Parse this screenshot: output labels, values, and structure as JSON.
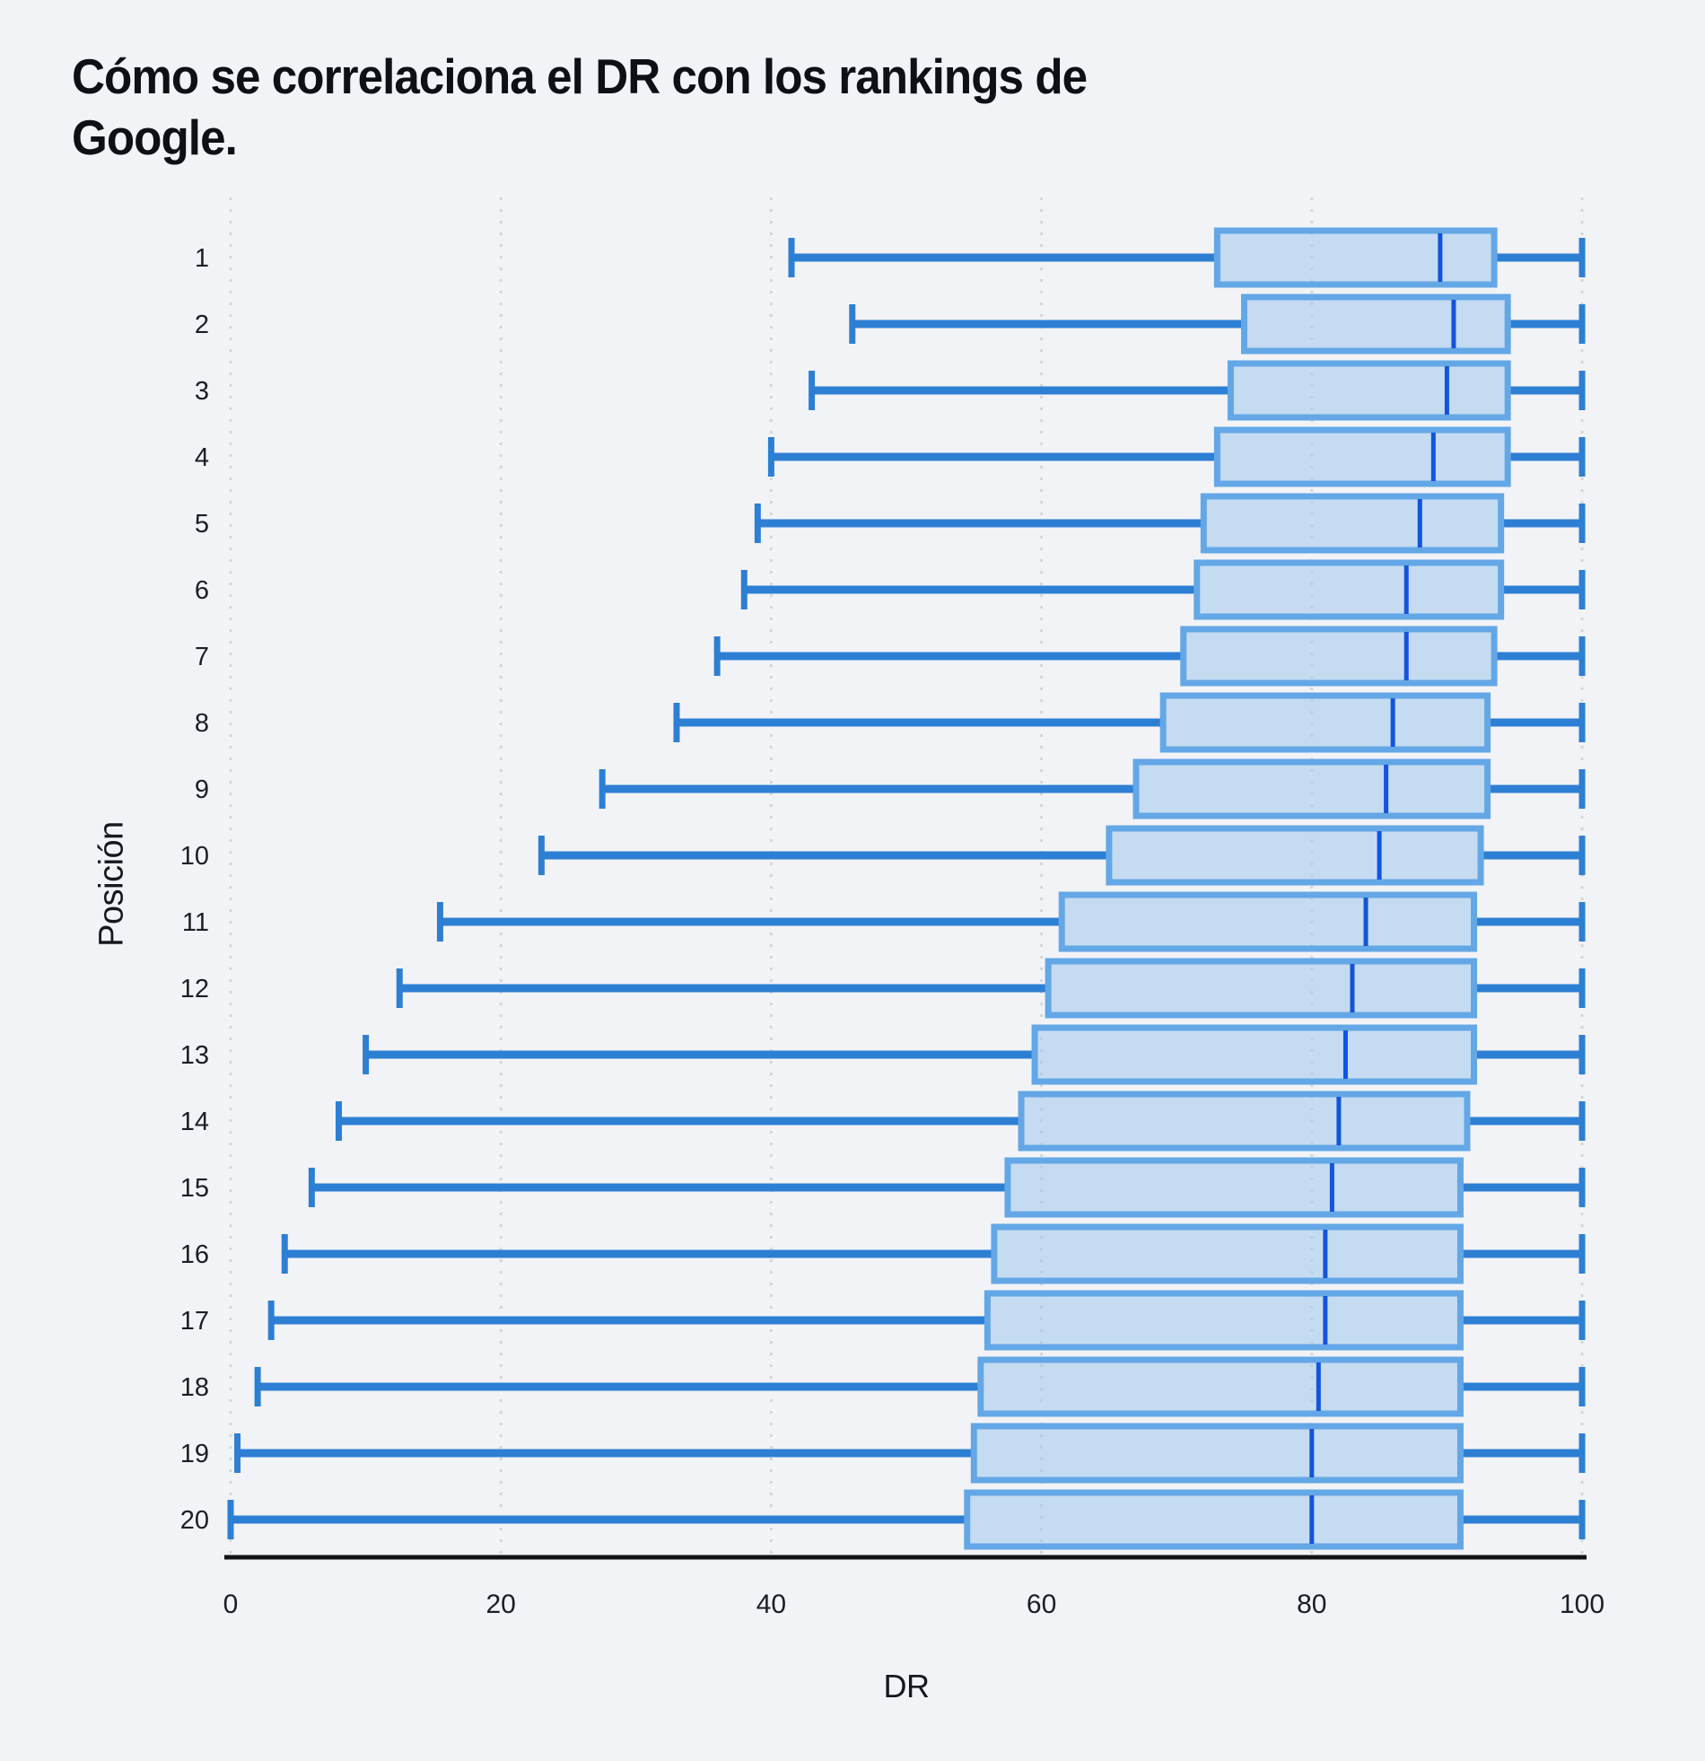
{
  "page": {
    "background": "#f2f3f6"
  },
  "chart": {
    "title": "Cómo se correlaciona el DR con los rankings de\nGoogle.",
    "xlabel": "DR",
    "ylabel": "Posición"
  },
  "chart_data": {
    "type": "boxplot",
    "orientation": "horizontal",
    "title": "Cómo se correlaciona el DR con los rankings de Google.",
    "xlabel": "DR",
    "ylabel": "Posición",
    "xlim": [
      0,
      100
    ],
    "xticks": [
      0,
      20,
      40,
      60,
      80,
      100
    ],
    "grid": "vertical-dotted",
    "legend": "none",
    "categories": [
      "1",
      "2",
      "3",
      "4",
      "5",
      "6",
      "7",
      "8",
      "9",
      "10",
      "11",
      "12",
      "13",
      "14",
      "15",
      "16",
      "17",
      "18",
      "19",
      "20"
    ],
    "series": [
      {
        "position": 1,
        "whisker_min": 41.5,
        "q1": 73,
        "median": 89.5,
        "q3": 93.5,
        "whisker_max": 100
      },
      {
        "position": 2,
        "whisker_min": 46,
        "q1": 75,
        "median": 90.5,
        "q3": 94.5,
        "whisker_max": 100
      },
      {
        "position": 3,
        "whisker_min": 43,
        "q1": 74,
        "median": 90,
        "q3": 94.5,
        "whisker_max": 100
      },
      {
        "position": 4,
        "whisker_min": 40,
        "q1": 73,
        "median": 89,
        "q3": 94.5,
        "whisker_max": 100
      },
      {
        "position": 5,
        "whisker_min": 39,
        "q1": 72,
        "median": 88,
        "q3": 94,
        "whisker_max": 100
      },
      {
        "position": 6,
        "whisker_min": 38,
        "q1": 71.5,
        "median": 87,
        "q3": 94,
        "whisker_max": 100
      },
      {
        "position": 7,
        "whisker_min": 36,
        "q1": 70.5,
        "median": 87,
        "q3": 93.5,
        "whisker_max": 100
      },
      {
        "position": 8,
        "whisker_min": 33,
        "q1": 69,
        "median": 86,
        "q3": 93,
        "whisker_max": 100
      },
      {
        "position": 9,
        "whisker_min": 27.5,
        "q1": 67,
        "median": 85.5,
        "q3": 93,
        "whisker_max": 100
      },
      {
        "position": 10,
        "whisker_min": 23,
        "q1": 65,
        "median": 85,
        "q3": 92.5,
        "whisker_max": 100
      },
      {
        "position": 11,
        "whisker_min": 15.5,
        "q1": 61.5,
        "median": 84,
        "q3": 92,
        "whisker_max": 100
      },
      {
        "position": 12,
        "whisker_min": 12.5,
        "q1": 60.5,
        "median": 83,
        "q3": 92,
        "whisker_max": 100
      },
      {
        "position": 13,
        "whisker_min": 10,
        "q1": 59.5,
        "median": 82.5,
        "q3": 92,
        "whisker_max": 100
      },
      {
        "position": 14,
        "whisker_min": 8,
        "q1": 58.5,
        "median": 82,
        "q3": 91.5,
        "whisker_max": 100
      },
      {
        "position": 15,
        "whisker_min": 6,
        "q1": 57.5,
        "median": 81.5,
        "q3": 91,
        "whisker_max": 100
      },
      {
        "position": 16,
        "whisker_min": 4,
        "q1": 56.5,
        "median": 81,
        "q3": 91,
        "whisker_max": 100
      },
      {
        "position": 17,
        "whisker_min": 3,
        "q1": 56,
        "median": 81,
        "q3": 91,
        "whisker_max": 100
      },
      {
        "position": 18,
        "whisker_min": 2,
        "q1": 55.5,
        "median": 80.5,
        "q3": 91,
        "whisker_max": 100
      },
      {
        "position": 19,
        "whisker_min": 0.5,
        "q1": 55,
        "median": 80,
        "q3": 91,
        "whisker_max": 100
      },
      {
        "position": 20,
        "whisker_min": 0,
        "q1": 54.5,
        "median": 80,
        "q3": 91,
        "whisker_max": 100
      }
    ],
    "colors": {
      "box_fill": "#9ec7ec",
      "box_border": "#63a7e6",
      "whisker": "#2d7fd4",
      "median": "#1254dd",
      "grid": "#d4d7da",
      "axis": "#101214",
      "tick_text": "#1b1e24",
      "background": "#f2f3f6"
    }
  }
}
